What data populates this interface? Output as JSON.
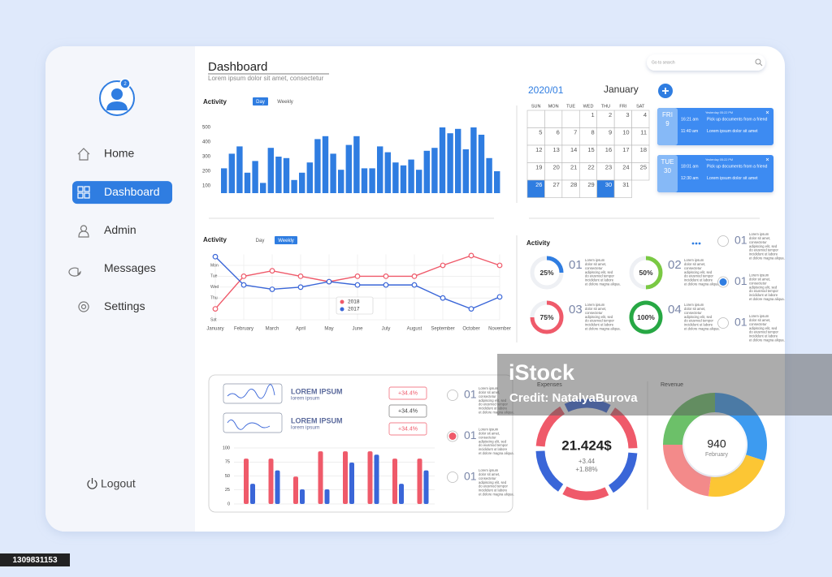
{
  "sidebar": {
    "badge": "2",
    "nav": [
      {
        "label": "Home"
      },
      {
        "label": "Dashboard",
        "active": true
      },
      {
        "label": "Admin"
      },
      {
        "label": "Messages"
      },
      {
        "label": "Settings"
      }
    ],
    "logout": "Logout"
  },
  "header": {
    "title": "Dashboard",
    "subtitle": "Lorem ipsum dolor sit amet, consectetur",
    "search": "Go to search"
  },
  "activity_bars": {
    "title": "Activity",
    "tabs": [
      {
        "label": "Day",
        "active": true
      },
      {
        "label": "Weekly"
      }
    ],
    "color": "#2f7de1",
    "ylim": [
      50,
      520
    ],
    "yticks": [
      100,
      200,
      300,
      400,
      500
    ],
    "values": [
      220,
      320,
      370,
      190,
      270,
      120,
      360,
      300,
      290,
      140,
      190,
      260,
      420,
      440,
      320,
      210,
      380,
      440,
      220,
      220,
      370,
      330,
      260,
      240,
      280,
      210,
      340,
      360,
      500,
      460,
      490,
      350,
      500,
      450,
      290,
      200
    ]
  },
  "calendar": {
    "year_month": "2020/01",
    "month": "January",
    "weekdays": [
      "SUN",
      "MON",
      "TUE",
      "WED",
      "THU",
      "FRI",
      "SAT"
    ],
    "weeks": [
      [
        null,
        null,
        null,
        1,
        2,
        3,
        4
      ],
      [
        5,
        6,
        7,
        8,
        9,
        10,
        11
      ],
      [
        12,
        13,
        14,
        15,
        16,
        17,
        18
      ],
      [
        19,
        20,
        21,
        22,
        23,
        24,
        25
      ],
      [
        26,
        27,
        28,
        29,
        30,
        31
      ]
    ],
    "highlighted": [
      26,
      30
    ]
  },
  "events": [
    {
      "weekday": "FRI",
      "day": "9",
      "header": "Yesterday 05:22 PM",
      "items": [
        {
          "time": "16:21 am",
          "text": "Pick up documents from a friend"
        },
        {
          "time": "11:40 am",
          "text": "Lorem ipsum dolor sit amet"
        }
      ]
    },
    {
      "weekday": "TUE",
      "day": "30",
      "header": "Yesterday 05:22 PM",
      "items": [
        {
          "time": "18:01 am",
          "text": "Pick up documents from a friend"
        },
        {
          "time": "12:30 am",
          "text": "Lorem ipsum dolor sit amet"
        }
      ]
    }
  ],
  "activity_lines": {
    "title": "Activity",
    "tabs": [
      {
        "label": "Day"
      },
      {
        "label": "Weekly",
        "active": true
      }
    ],
    "categories": [
      "January",
      "February",
      "March",
      "April",
      "May",
      "June",
      "July",
      "August",
      "September",
      "October",
      "November"
    ],
    "ylim": [
      0,
      6
    ],
    "yticks": [
      {
        "value": 5,
        "label": "Mon"
      },
      {
        "value": 4,
        "label": "Tue"
      },
      {
        "value": 3,
        "label": "Wed"
      },
      {
        "value": 2,
        "label": "Thu"
      },
      {
        "value": 0,
        "label": "Sat"
      }
    ],
    "grid": true,
    "series": [
      {
        "name": "2018",
        "color": "#ef5a6a",
        "values": [
          1,
          4,
          4.5,
          4,
          3.5,
          4,
          4,
          4,
          5,
          5.9,
          5
        ]
      },
      {
        "name": "2017",
        "color": "#3a66d8",
        "values": [
          5.8,
          3.2,
          2.8,
          3,
          3.5,
          3.2,
          3.2,
          3.2,
          2,
          1,
          2.1
        ]
      }
    ]
  },
  "activity_rings": {
    "title": "Activity",
    "items": [
      {
        "number": "01",
        "value": 25,
        "label": "25%",
        "color": "#2f7de1",
        "lines": [
          "Lorem ipsum",
          "dolor sit amet,",
          "consectetur",
          "adipiscing elit, sed",
          "do eiusmod tempor",
          "incididunt ut labore",
          "et dolore magna aliqua."
        ]
      },
      {
        "number": "02",
        "value": 50,
        "label": "50%",
        "color": "#7ac943",
        "lines": [
          "Lorem ipsum",
          "dolor sit amet,",
          "consectetur",
          "adipiscing elit, sed",
          "do eiusmod tempor",
          "incididunt ut labore",
          "et dolore magna aliqua."
        ]
      },
      {
        "number": "03",
        "value": 75,
        "label": "75%",
        "color": "#ef5a6a",
        "lines": [
          "Lorem ipsum",
          "dolor sit amet,",
          "consectetur",
          "adipiscing elit, sed",
          "do eiusmod tempor",
          "incididunt ut labore",
          "et dolore magna aliqua."
        ]
      },
      {
        "number": "04",
        "value": 100,
        "label": "100%",
        "color": "#27a844",
        "lines": [
          "Lorem ipsum",
          "dolor sit amet,",
          "consectetur",
          "adipiscing elit, sed",
          "do eiusmod tempor",
          "incididunt ut labore",
          "et dolore magna aliqua."
        ]
      }
    ]
  },
  "radio_top": [
    {
      "number": "01",
      "lines": [
        "Lorem ipsum",
        "dolor sit amet,",
        "consectetur",
        "adipiscing elit, sed",
        "do eiusmod tempor",
        "incididunt ut labore",
        "et dolore magna aliqua."
      ]
    },
    {
      "number": "01",
      "selected": true,
      "lines": [
        "Lorem ipsum",
        "dolor sit amet,",
        "consectetur",
        "adipiscing elit, sed",
        "do eiusmod tempor",
        "incididunt ut labore",
        "et dolore magna aliqua."
      ]
    },
    {
      "number": "01",
      "lines": [
        "Lorem ipsum",
        "dolor sit amet,",
        "consectetur",
        "adipiscing elit, sed",
        "do eiusmod tempor",
        "incididunt ut labore",
        "et dolore magna aliqua."
      ]
    }
  ],
  "summary": {
    "cards": [
      {
        "title": "LOREM IPSUM",
        "subtitle": "lorem ipsum"
      },
      {
        "title": "LOREM IPSUM",
        "subtitle": "lorem ipsum"
      }
    ],
    "badges": [
      "+34.4%",
      "+34.4%",
      "+34.4%"
    ]
  },
  "grouped_bars": {
    "ylim": [
      0,
      100
    ],
    "yticks": [
      0,
      25,
      50,
      75,
      100
    ],
    "grid": true,
    "series": [
      {
        "color": "#ef5a6a",
        "values": [
          81,
          81,
          49,
          94,
          94,
          94,
          81,
          81
        ]
      },
      {
        "color": "#3a66d8",
        "values": [
          36,
          60,
          26,
          26,
          74,
          88,
          36,
          60
        ]
      }
    ]
  },
  "radio_bottom": [
    {
      "number": "01",
      "lines": [
        "Lorem ipsum",
        "dolor sit amet,",
        "consectetur",
        "adipiscing elit, sed",
        "do eiusmod tempor",
        "incididunt ut labore",
        "et dolore magna aliqua."
      ]
    },
    {
      "number": "01",
      "selected": true,
      "lines": [
        "Lorem ipsum",
        "dolor sit amet,",
        "consectetur",
        "adipiscing elit, sed",
        "do eiusmod tempor",
        "incididunt ut labore",
        "et dolore magna aliqua."
      ]
    },
    {
      "number": "01",
      "lines": [
        "Lorem ipsum",
        "dolor sit amet,",
        "consectetur",
        "adipiscing elit, sed",
        "do eiusmod tempor",
        "incididunt ut labore",
        "et dolore magna aliqua."
      ]
    }
  ],
  "expenses": {
    "title": "Expenses",
    "amount": "21.424$",
    "change": "+3.44",
    "change_pct": "+1.88%"
  },
  "revenue": {
    "type": "pie",
    "title": "Revenue",
    "value": "940",
    "month": "February",
    "segments": [
      {
        "value": 30,
        "color": "#3d9bf0"
      },
      {
        "value": 22,
        "color": "#fcc634"
      },
      {
        "value": 23,
        "color": "#f38a8a"
      },
      {
        "value": 25,
        "color": "#6cc069"
      }
    ]
  },
  "watermark": {
    "brand": "iStock",
    "credit": "Credit: NatalyaBurova",
    "id": "1309831153"
  }
}
